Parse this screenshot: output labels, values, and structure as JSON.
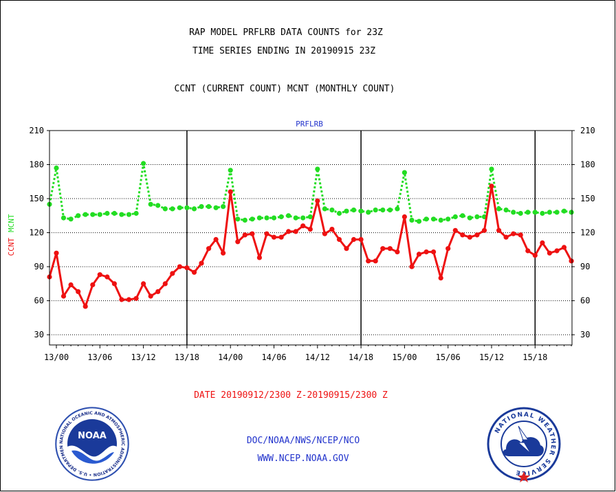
{
  "header": {
    "title_line1": "RAP MODEL PRFLRB DATA COUNTS for 23Z",
    "title_line2": "TIME SERIES ENDING IN 20190915 23Z",
    "subtitle": "CCNT (CURRENT COUNT) MCNT (MONTHLY COUNT)"
  },
  "footer": {
    "date_range": "DATE 20190912/2300 Z-20190915/2300 Z",
    "org": "DOC/NOAA/NWS/NCEP/NCO",
    "url": "WWW.NCEP.NOAA.GOV"
  },
  "logos": {
    "noaa_text": "NOAA",
    "noaa_ring": "NATIONAL OCEANIC AND ATMOSPHERIC ADMINISTRATION • U.S. DEPARTMENT OF COMMERCE •",
    "nws_ring": "NATIONAL WEATHER SERVICE"
  },
  "colors": {
    "ccnt": "#ee1111",
    "mcnt": "#22dd22",
    "title": "#000000",
    "plot_label": "#2233cc",
    "date": "#ee1111",
    "footer_link": "#2233cc"
  },
  "chart_data": {
    "type": "line",
    "title": "PRFLRB",
    "ylabel_left": [
      "CCNT",
      "MCNT"
    ],
    "ylim": [
      21,
      210
    ],
    "yticks": [
      30,
      60,
      90,
      120,
      150,
      180,
      210
    ],
    "x_start": "13/00",
    "x_step_hours": 1,
    "x_offset_first_point_hours": -1,
    "xticks": [
      "13/00",
      "13/06",
      "13/12",
      "13/18",
      "14/00",
      "14/06",
      "14/12",
      "14/18",
      "15/00",
      "15/06",
      "15/12",
      "15/18"
    ],
    "major_day_lines": [
      "13/18",
      "14/18",
      "15/18"
    ],
    "grid": true,
    "series": [
      {
        "name": "CCNT",
        "style": "solid",
        "values": [
          81,
          102,
          64,
          74,
          68,
          55,
          74,
          83,
          81,
          75,
          61,
          61,
          62,
          75,
          64,
          68,
          75,
          84,
          90,
          89,
          85,
          93,
          106,
          114,
          102,
          156,
          112,
          118,
          119,
          98,
          119,
          116,
          116,
          121,
          121,
          126,
          123,
          148,
          119,
          123,
          114,
          106,
          114,
          114,
          95,
          95,
          106,
          106,
          103,
          134,
          90,
          101,
          103,
          103,
          80,
          106,
          122,
          118,
          116,
          118,
          122,
          161,
          122,
          116,
          119,
          118,
          104,
          100,
          111,
          102,
          104,
          107,
          95
        ]
      },
      {
        "name": "MCNT",
        "style": "dotted",
        "values": [
          145,
          177,
          133,
          132,
          135,
          136,
          136,
          136,
          137,
          137,
          136,
          136,
          137,
          181,
          145,
          144,
          141,
          141,
          142,
          142,
          141,
          143,
          143,
          142,
          143,
          175,
          132,
          131,
          132,
          133,
          133,
          133,
          134,
          135,
          133,
          133,
          134,
          176,
          141,
          140,
          137,
          139,
          140,
          139,
          138,
          140,
          140,
          140,
          141,
          173,
          131,
          130,
          132,
          132,
          131,
          132,
          134,
          135,
          133,
          134,
          134,
          176,
          141,
          140,
          138,
          137,
          138,
          138,
          137,
          138,
          138,
          139,
          138
        ]
      }
    ]
  }
}
